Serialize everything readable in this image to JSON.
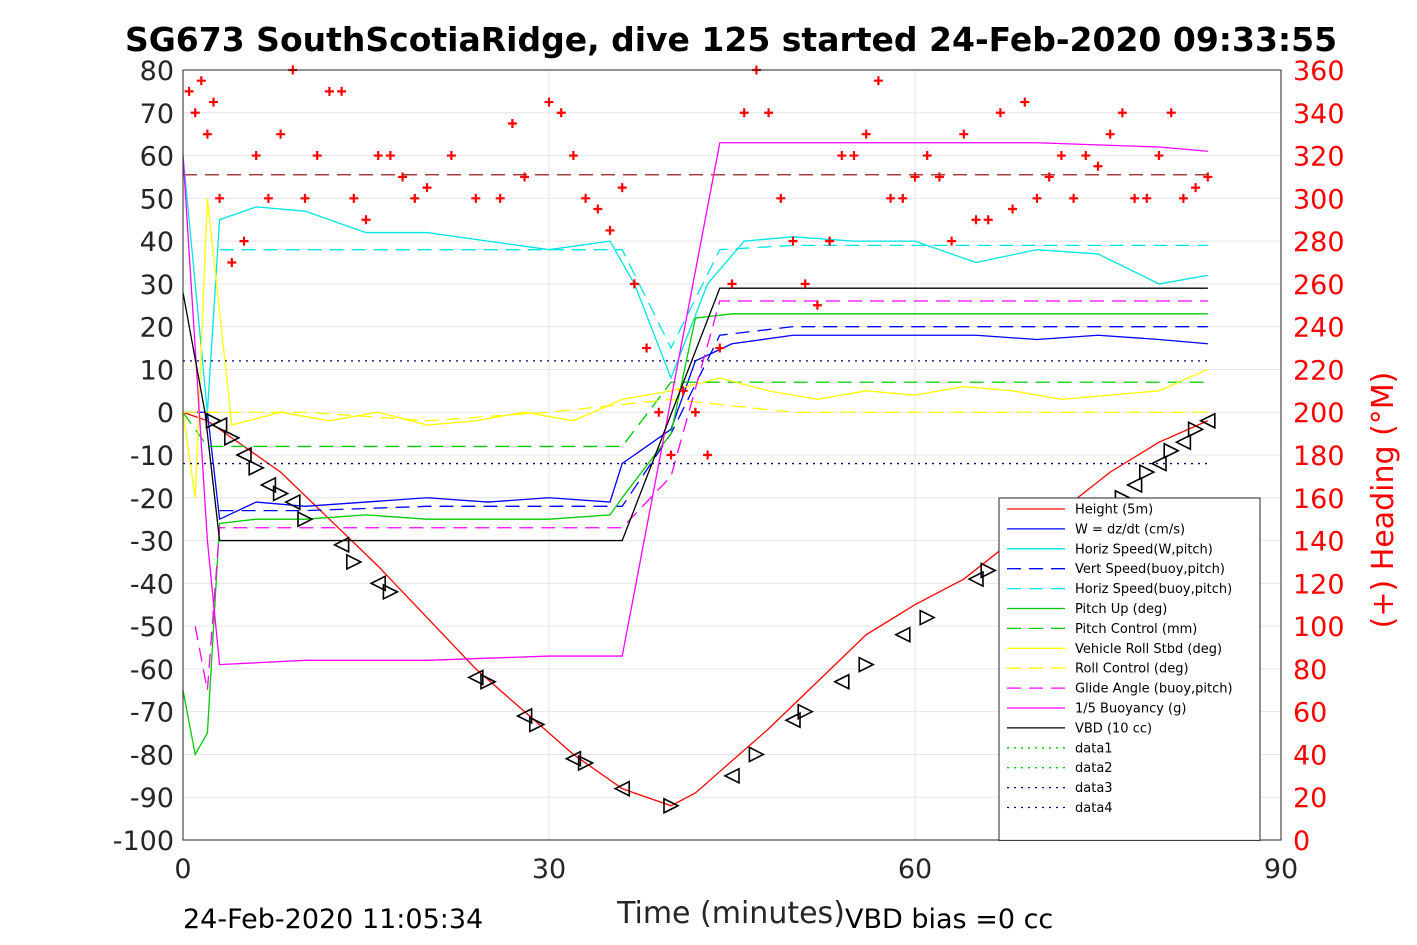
{
  "chart_data": {
    "type": "line",
    "title": "SG673 SouthScotiaRidge, dive 125 started 24-Feb-2020 09:33:55",
    "xlabel": "Time (minutes)",
    "ylabel_right": "(+) Heading (°M)",
    "xlim": [
      0,
      90
    ],
    "ylim": [
      -100,
      80
    ],
    "ylim_right": [
      0,
      360
    ],
    "x_ticks": [
      "0",
      "30",
      "60",
      "90"
    ],
    "y_ticks": [
      "80",
      "70",
      "60",
      "50",
      "40",
      "30",
      "20",
      "10",
      "0",
      "-10",
      "-20",
      "-30",
      "-40",
      "-50",
      "-60",
      "-70",
      "-80",
      "-90",
      "-100"
    ],
    "y_ticks_right": [
      "360",
      "340",
      "320",
      "300",
      "280",
      "260",
      "240",
      "220",
      "200",
      "180",
      "160",
      "140",
      "120",
      "100",
      "80",
      "60",
      "40",
      "20",
      "0"
    ],
    "grid": true,
    "legend_position": "bottom-right",
    "footer_left": "24-Feb-2020 11:05:34",
    "footer_right": "VBD bias =0 cc",
    "series": [
      {
        "name": "Height (5m)",
        "color": "#ff0000",
        "style": "solid",
        "x": [
          0,
          2,
          4,
          8,
          12,
          16,
          20,
          24,
          28,
          32,
          36,
          38,
          40,
          42,
          44,
          48,
          52,
          56,
          60,
          64,
          68,
          72,
          76,
          80,
          84
        ],
        "y": [
          0,
          -2,
          -6,
          -14,
          -25,
          -36,
          -48,
          -60,
          -70,
          -80,
          -88,
          -90,
          -92,
          -89,
          -84,
          -74,
          -63,
          -52,
          -45,
          -39,
          -30,
          -23,
          -14,
          -7,
          -2
        ]
      },
      {
        "name": "W = dz/dt (cm/s)",
        "color": "#0000ff",
        "style": "solid",
        "x": [
          0,
          2,
          3,
          6,
          10,
          15,
          20,
          25,
          30,
          35,
          36,
          40,
          42,
          45,
          50,
          55,
          60,
          65,
          70,
          75,
          80,
          84
        ],
        "y": [
          0,
          0,
          -25,
          -21,
          -22,
          -21,
          -20,
          -21,
          -20,
          -21,
          -12,
          -4,
          12,
          16,
          18,
          18,
          18,
          18,
          17,
          18,
          17,
          16
        ]
      },
      {
        "name": "Horiz Speed(W,pitch)",
        "color": "#00e5e5",
        "style": "solid",
        "x": [
          0,
          2,
          3,
          6,
          10,
          15,
          20,
          25,
          30,
          35,
          37,
          40,
          43,
          46,
          50,
          55,
          60,
          65,
          70,
          75,
          80,
          84
        ],
        "y": [
          60,
          0,
          45,
          48,
          47,
          42,
          42,
          40,
          38,
          40,
          30,
          8,
          30,
          40,
          41,
          40,
          40,
          35,
          38,
          37,
          30,
          32
        ]
      },
      {
        "name": "Vert Speed(buoy,pitch)",
        "color": "#0000ff",
        "style": "dash",
        "x": [
          3,
          10,
          20,
          30,
          36,
          40,
          44,
          50,
          60,
          70,
          80,
          84
        ],
        "y": [
          -23,
          -23,
          -22,
          -22,
          -22,
          -5,
          18,
          20,
          20,
          20,
          20,
          20
        ]
      },
      {
        "name": "Horiz Speed(buoy,pitch)",
        "color": "#00e5e5",
        "style": "dash",
        "x": [
          3,
          10,
          20,
          30,
          36,
          40,
          44,
          50,
          60,
          70,
          80,
          84
        ],
        "y": [
          38,
          38,
          38,
          38,
          38,
          15,
          38,
          39,
          39,
          39,
          39,
          39
        ]
      },
      {
        "name": "Pitch Up (deg)",
        "color": "#00cc00",
        "style": "solid",
        "x": [
          0,
          1,
          2,
          3,
          6,
          10,
          15,
          20,
          25,
          30,
          35,
          36,
          40,
          42,
          45,
          50,
          55,
          60,
          65,
          70,
          75,
          80,
          84
        ],
        "y": [
          -65,
          -80,
          -75,
          -26,
          -25,
          -25,
          -24,
          -25,
          -25,
          -25,
          -24,
          -20,
          -5,
          22,
          23,
          23,
          23,
          23,
          23,
          23,
          23,
          23,
          23
        ]
      },
      {
        "name": "Pitch Control (mm)",
        "color": "#00cc00",
        "style": "dash",
        "x": [
          0,
          2,
          36,
          40,
          84
        ],
        "y": [
          0,
          -8,
          -8,
          7,
          7
        ]
      },
      {
        "name": "Vehicle Roll Stbd (deg)",
        "color": "#ffff00",
        "style": "solid",
        "x": [
          0,
          1,
          2,
          4,
          8,
          12,
          16,
          20,
          24,
          28,
          32,
          36,
          40,
          44,
          48,
          52,
          56,
          60,
          64,
          68,
          72,
          76,
          80,
          84
        ],
        "y": [
          0,
          -20,
          50,
          -3,
          0,
          -2,
          0,
          -3,
          -2,
          0,
          -2,
          3,
          5,
          8,
          5,
          3,
          5,
          4,
          6,
          5,
          3,
          4,
          5,
          10
        ]
      },
      {
        "name": "Roll Control (deg)",
        "color": "#ffff00",
        "style": "dash",
        "x": [
          0,
          10,
          20,
          30,
          40,
          50,
          60,
          70,
          80,
          84
        ],
        "y": [
          0,
          0,
          -2,
          0,
          3,
          0,
          0,
          0,
          0,
          0
        ]
      },
      {
        "name": "Glide Angle (buoy,pitch)",
        "color": "#ff00ff",
        "style": "dash",
        "x": [
          1,
          2,
          3,
          10,
          20,
          30,
          36,
          40,
          44,
          50,
          60,
          70,
          80,
          84
        ],
        "y": [
          -50,
          -65,
          -27,
          -27,
          -27,
          -27,
          -27,
          -15,
          26,
          26,
          26,
          26,
          26,
          26
        ]
      },
      {
        "name": "1/5 Buoyancy (g)",
        "color": "#ff00ff",
        "style": "solid",
        "x": [
          0,
          2,
          3,
          10,
          20,
          30,
          36,
          44,
          50,
          60,
          70,
          80,
          84
        ],
        "y": [
          60,
          -30,
          -59,
          -58,
          -58,
          -57,
          -57,
          63,
          63,
          63,
          63,
          62,
          61
        ]
      },
      {
        "name": "VBD (10 cc)",
        "color": "#000000",
        "style": "solid",
        "x": [
          0,
          1.8,
          3,
          10,
          20,
          30,
          36,
          44,
          50,
          60,
          70,
          80,
          84
        ],
        "y": [
          28,
          0,
          -30,
          -30,
          -30,
          -30,
          -30,
          29,
          29,
          29,
          29,
          29,
          29
        ]
      },
      {
        "name": "data1",
        "color": "#00cc00",
        "style": "dot",
        "x": [],
        "y": []
      },
      {
        "name": "data2",
        "color": "#00cc00",
        "style": "dot",
        "x": [],
        "y": []
      },
      {
        "name": "data3",
        "color": "#00007f",
        "style": "dot",
        "x": [
          0,
          84
        ],
        "y": [
          12,
          12
        ]
      },
      {
        "name": "data4",
        "color": "#00007f",
        "style": "dot",
        "x": [
          0,
          84
        ],
        "y": [
          -12,
          -12
        ]
      }
    ],
    "reference_lines": [
      {
        "color": "#8b0000",
        "style": "dash",
        "axis": "right",
        "x": [
          0,
          84
        ],
        "y": [
          311,
          311
        ]
      }
    ],
    "heading_points": {
      "color": "#ff0000",
      "marker": "+",
      "axis": "right",
      "x": [
        0.5,
        1,
        1.5,
        2,
        2.5,
        3,
        4,
        5,
        6,
        7,
        8,
        9,
        10,
        11,
        12,
        13,
        14,
        15,
        16,
        17,
        18,
        19,
        20,
        22,
        24,
        26,
        27,
        28,
        30,
        31,
        32,
        33,
        34,
        35,
        36,
        37,
        38,
        39,
        40,
        41,
        42,
        43,
        44,
        45,
        46,
        47,
        48,
        49,
        50,
        51,
        52,
        53,
        54,
        55,
        56,
        57,
        58,
        59,
        60,
        61,
        62,
        63,
        64,
        65,
        66,
        67,
        68,
        69,
        70,
        71,
        72,
        73,
        74,
        75,
        76,
        77,
        78,
        79,
        80,
        81,
        82,
        83,
        84
      ],
      "y": [
        350,
        340,
        355,
        330,
        345,
        300,
        270,
        280,
        320,
        300,
        330,
        360,
        300,
        320,
        350,
        350,
        300,
        290,
        320,
        320,
        310,
        300,
        305,
        320,
        300,
        300,
        335,
        310,
        345,
        340,
        320,
        300,
        295,
        285,
        305,
        260,
        230,
        200,
        180,
        210,
        200,
        180,
        230,
        260,
        340,
        360,
        340,
        300,
        280,
        260,
        250,
        280,
        320,
        320,
        330,
        355,
        300,
        300,
        310,
        320,
        310,
        280,
        330,
        290,
        290,
        340,
        295,
        345,
        300,
        310,
        320,
        300,
        320,
        315,
        330,
        340,
        300,
        300,
        320,
        340,
        300,
        305,
        310
      ]
    },
    "triangle_markers": {
      "color": "#000000",
      "x": [
        2.5,
        3,
        4,
        5,
        6,
        7,
        8,
        9,
        10,
        13,
        14,
        16,
        17,
        24,
        25,
        28,
        29,
        32,
        33,
        36,
        40,
        45,
        47,
        50,
        51,
        54,
        56,
        59,
        61,
        65,
        66,
        76,
        77,
        78,
        79,
        80,
        81,
        82,
        83,
        84
      ],
      "y": [
        -2,
        -3,
        -6,
        -10,
        -13,
        -17,
        -19,
        -21,
        -25,
        -31,
        -35,
        -40,
        -42,
        -62,
        -63,
        -71,
        -73,
        -81,
        -82,
        -88,
        -92,
        -85,
        -80,
        -72,
        -70,
        -63,
        -59,
        -52,
        -48,
        -39,
        -37,
        -23,
        -20,
        -17,
        -14,
        -12,
        -9,
        -7,
        -4,
        -2
      ]
    }
  }
}
